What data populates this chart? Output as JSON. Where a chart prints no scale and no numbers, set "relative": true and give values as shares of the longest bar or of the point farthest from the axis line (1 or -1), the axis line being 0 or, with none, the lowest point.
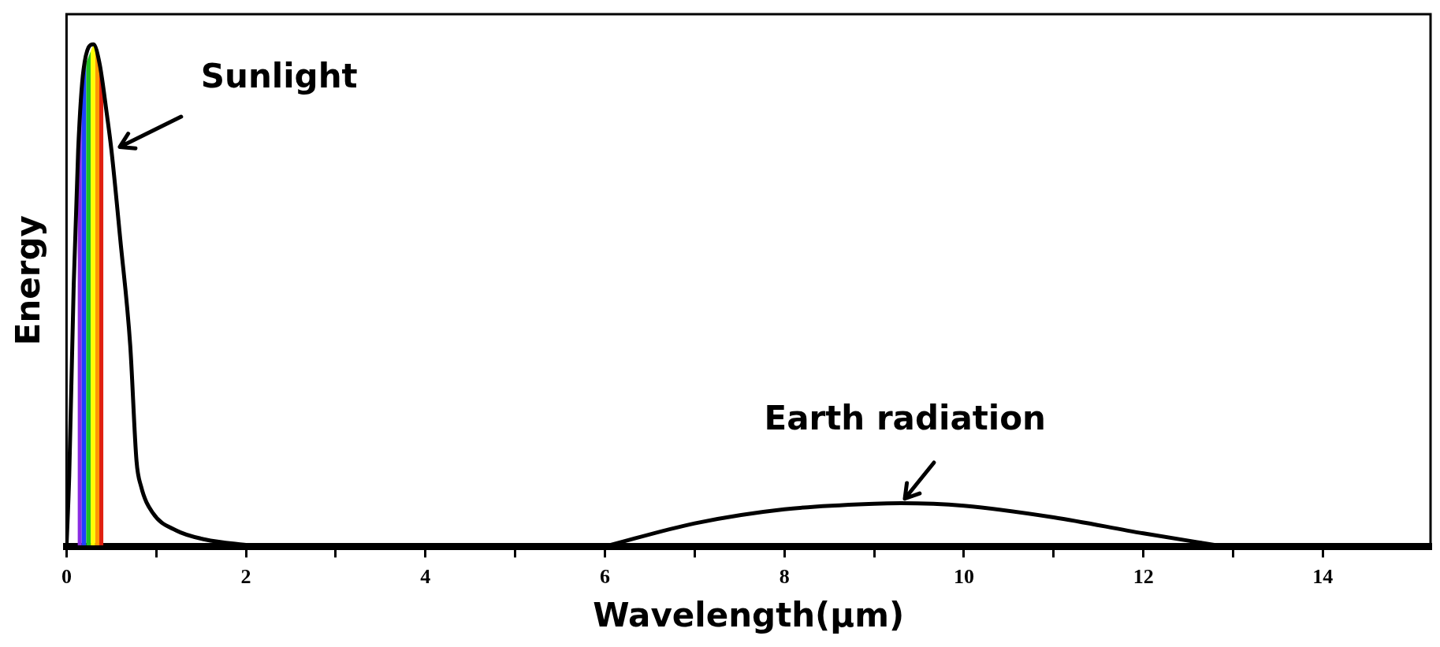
{
  "chart_data": {
    "type": "line",
    "relative": true,
    "xlabel": "Wavelength(μm)",
    "ylabel": "Energy",
    "xlim": [
      0,
      15.2
    ],
    "xticks": [
      0,
      {
        "value": 1,
        "label": null
      },
      2,
      {
        "value": 3,
        "label": null
      },
      4,
      {
        "value": 5,
        "label": null
      },
      6,
      {
        "value": 7,
        "label": null
      },
      8,
      {
        "value": 9,
        "label": null
      },
      10,
      {
        "value": 11,
        "label": null
      },
      12,
      {
        "value": 13,
        "label": null
      },
      14
    ],
    "series": [
      {
        "color": "#000000",
        "x": [
          0,
          0.03,
          0.08,
          0.13,
          0.19,
          0.3,
          0.37,
          0.45,
          0.5,
          0.6,
          0.71,
          0.78,
          0.83,
          0.96,
          1.22,
          1.54,
          2.05
        ],
        "values": [
          0,
          0.14,
          0.52,
          0.79,
          0.95,
          1,
          0.96,
          0.86,
          0.79,
          0.61,
          0.4,
          0.17,
          0.12,
          0.067,
          0.032,
          0.014,
          0.002
        ]
      },
      {
        "color": "#000000",
        "x": [
          6,
          7,
          8,
          9,
          9.3,
          10,
          11,
          12,
          12.9
        ],
        "values": [
          0,
          0.046,
          0.074,
          0.085,
          0.086,
          0.081,
          0.058,
          0.026,
          0
        ]
      }
    ],
    "bands": [
      {
        "axis": "x",
        "from": 0.125,
        "to": 0.17,
        "color": "#8a2be2"
      },
      {
        "axis": "x",
        "from": 0.17,
        "to": 0.22,
        "color": "#1e40ff"
      },
      {
        "axis": "x",
        "from": 0.22,
        "to": 0.27,
        "color": "#22c020"
      },
      {
        "axis": "x",
        "from": 0.27,
        "to": 0.32,
        "color": "#ffff00"
      },
      {
        "axis": "x",
        "from": 0.32,
        "to": 0.365,
        "color": "#ff9900"
      },
      {
        "axis": "x",
        "from": 0.365,
        "to": 0.41,
        "color": "#e02010"
      }
    ],
    "annotations": [
      {
        "text": "Sunlight",
        "x": 0.53,
        "y": 0.79
      },
      {
        "text": "Earth radiation",
        "x": 9.3,
        "y": 0.086
      }
    ],
    "marker": "none",
    "line_style": "solid",
    "legend": false,
    "grid": false
  }
}
